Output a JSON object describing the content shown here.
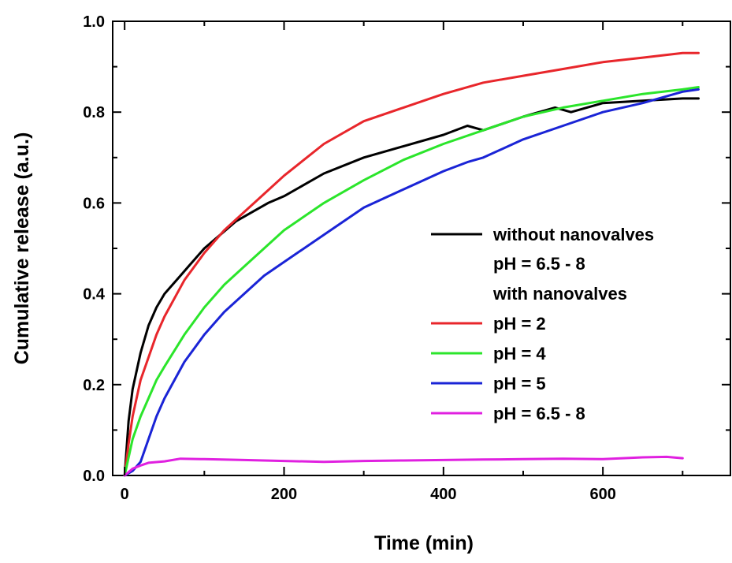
{
  "chart_data": {
    "type": "line",
    "xlabel": "Time (min)",
    "ylabel": "Cumulative release (a.u.)",
    "xlim": [
      -15,
      760
    ],
    "ylim": [
      0,
      1.0
    ],
    "x_ticks": [
      0,
      200,
      400,
      600
    ],
    "x_tick_labels": [
      "0",
      "200",
      "400",
      "600"
    ],
    "y_ticks": [
      0.0,
      0.2,
      0.4,
      0.6,
      0.8,
      1.0
    ],
    "y_tick_labels": [
      "0.0",
      "0.2",
      "0.4",
      "0.6",
      "0.8",
      "1.0"
    ],
    "grid": false,
    "legend": {
      "placement": "right",
      "entries": [
        {
          "series": "without",
          "line1": "without nanovalves",
          "line2": "pH = 6.5 - 8"
        },
        {
          "header": "with nanovalves"
        },
        {
          "series": "ph2",
          "line1": "pH = 2"
        },
        {
          "series": "ph4",
          "line1": "pH = 4"
        },
        {
          "series": "ph5",
          "line1": "pH = 5"
        },
        {
          "series": "ph65",
          "line1": "pH = 6.5 - 8"
        }
      ]
    },
    "series": [
      {
        "id": "without",
        "color": "#000000",
        "x": [
          0,
          5,
          10,
          20,
          30,
          40,
          50,
          60,
          70,
          80,
          100,
          120,
          140,
          160,
          180,
          200,
          250,
          300,
          350,
          400,
          430,
          450,
          500,
          540,
          560,
          600,
          650,
          700,
          720
        ],
        "y": [
          0.0,
          0.12,
          0.19,
          0.27,
          0.33,
          0.37,
          0.4,
          0.42,
          0.44,
          0.46,
          0.5,
          0.53,
          0.56,
          0.58,
          0.6,
          0.615,
          0.665,
          0.7,
          0.725,
          0.75,
          0.77,
          0.76,
          0.79,
          0.81,
          0.8,
          0.82,
          0.825,
          0.83,
          0.83
        ]
      },
      {
        "id": "ph2",
        "color": "#e8262b",
        "x": [
          0,
          5,
          10,
          20,
          30,
          40,
          50,
          75,
          100,
          125,
          150,
          175,
          200,
          250,
          300,
          350,
          400,
          450,
          500,
          550,
          600,
          650,
          700,
          720
        ],
        "y": [
          0.0,
          0.07,
          0.13,
          0.21,
          0.26,
          0.31,
          0.35,
          0.43,
          0.49,
          0.54,
          0.58,
          0.62,
          0.66,
          0.73,
          0.78,
          0.81,
          0.84,
          0.865,
          0.88,
          0.895,
          0.91,
          0.92,
          0.93,
          0.93
        ]
      },
      {
        "id": "ph4",
        "color": "#2be52b",
        "x": [
          0,
          5,
          10,
          20,
          30,
          40,
          50,
          75,
          100,
          125,
          150,
          175,
          200,
          250,
          300,
          350,
          400,
          450,
          500,
          550,
          600,
          650,
          700,
          720
        ],
        "y": [
          0.0,
          0.04,
          0.08,
          0.13,
          0.17,
          0.21,
          0.24,
          0.31,
          0.37,
          0.42,
          0.46,
          0.5,
          0.54,
          0.6,
          0.65,
          0.695,
          0.73,
          0.76,
          0.79,
          0.81,
          0.825,
          0.84,
          0.85,
          0.855
        ]
      },
      {
        "id": "ph5",
        "color": "#1a24d6",
        "x": [
          0,
          5,
          10,
          20,
          30,
          40,
          50,
          75,
          100,
          125,
          150,
          175,
          200,
          250,
          300,
          350,
          400,
          430,
          450,
          500,
          550,
          600,
          650,
          700,
          720
        ],
        "y": [
          0.0,
          0.005,
          0.01,
          0.03,
          0.08,
          0.13,
          0.17,
          0.25,
          0.31,
          0.36,
          0.4,
          0.44,
          0.47,
          0.53,
          0.59,
          0.63,
          0.67,
          0.69,
          0.7,
          0.74,
          0.77,
          0.8,
          0.82,
          0.845,
          0.85
        ]
      },
      {
        "id": "ph65",
        "color": "#e020e0",
        "x": [
          0,
          10,
          20,
          30,
          50,
          70,
          100,
          150,
          200,
          250,
          300,
          350,
          400,
          450,
          500,
          550,
          600,
          650,
          680,
          700
        ],
        "y": [
          0.0,
          0.015,
          0.022,
          0.028,
          0.031,
          0.037,
          0.036,
          0.034,
          0.032,
          0.03,
          0.032,
          0.033,
          0.034,
          0.035,
          0.036,
          0.037,
          0.036,
          0.04,
          0.041,
          0.038
        ]
      }
    ]
  }
}
